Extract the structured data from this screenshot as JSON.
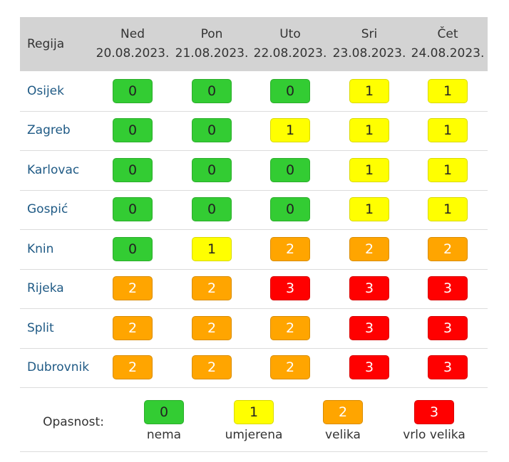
{
  "header": {
    "region": "Regija",
    "days": [
      {
        "name": "Ned",
        "date": "20.08.2023."
      },
      {
        "name": "Pon",
        "date": "21.08.2023."
      },
      {
        "name": "Uto",
        "date": "22.08.2023."
      },
      {
        "name": "Sri",
        "date": "23.08.2023."
      },
      {
        "name": "Čet",
        "date": "24.08.2023."
      }
    ]
  },
  "rows": [
    {
      "region": "Osijek",
      "levels": [
        0,
        0,
        0,
        1,
        1
      ]
    },
    {
      "region": "Zagreb",
      "levels": [
        0,
        0,
        1,
        1,
        1
      ]
    },
    {
      "region": "Karlovac",
      "levels": [
        0,
        0,
        0,
        1,
        1
      ]
    },
    {
      "region": "Gospić",
      "levels": [
        0,
        0,
        0,
        1,
        1
      ]
    },
    {
      "region": "Knin",
      "levels": [
        0,
        1,
        2,
        2,
        2
      ]
    },
    {
      "region": "Rijeka",
      "levels": [
        2,
        2,
        3,
        3,
        3
      ]
    },
    {
      "region": "Split",
      "levels": [
        2,
        2,
        2,
        3,
        3
      ]
    },
    {
      "region": "Dubrovnik",
      "levels": [
        2,
        2,
        2,
        3,
        3
      ]
    }
  ],
  "legend": {
    "title": "Opasnost:",
    "items": [
      {
        "level": 0,
        "label": "nema"
      },
      {
        "level": 1,
        "label": "umjerena"
      },
      {
        "level": 2,
        "label": "velika"
      },
      {
        "level": 3,
        "label": "vrlo velika"
      }
    ]
  },
  "level_colors": [
    "#33cc33",
    "#ffff00",
    "#ffa500",
    "#ff0000"
  ],
  "level_text_colors": [
    "#222222",
    "#222222",
    "#ffffff",
    "#ffffff"
  ]
}
